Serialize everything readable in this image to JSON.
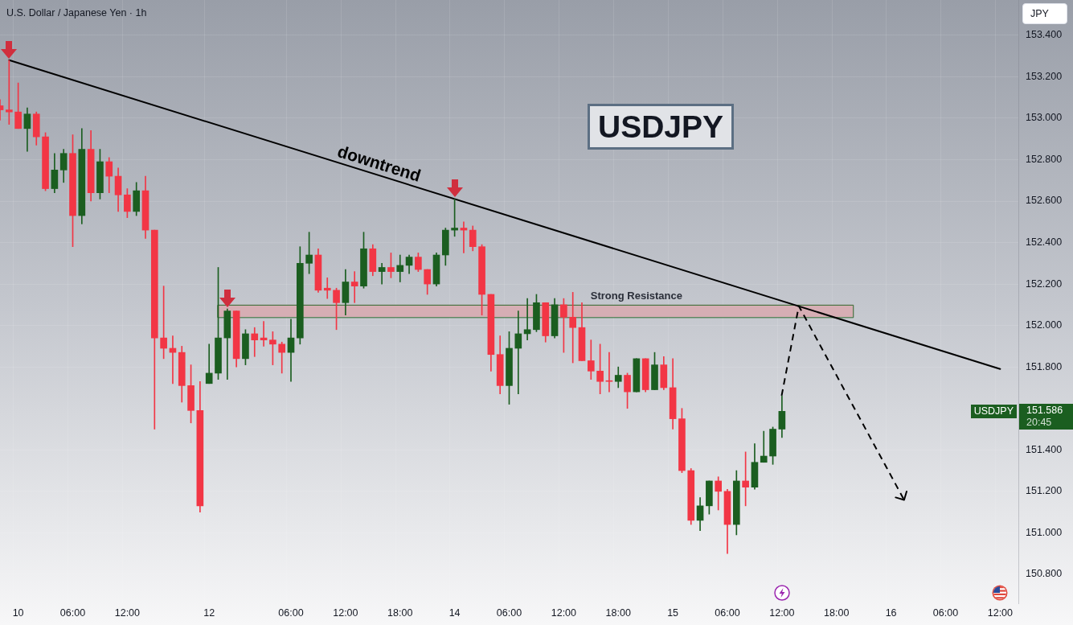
{
  "chart_data": {
    "type": "candlestick",
    "title": "U.S. Dollar / Japanese Yen · 1h",
    "ylabel": "JPY",
    "categories": [
      null,
      null,
      "10",
      null,
      null,
      null,
      null,
      null,
      "06:00",
      null,
      null,
      null,
      null,
      null,
      "12:00",
      null,
      null,
      null,
      null,
      null,
      null,
      null,
      null,
      "12",
      null,
      null,
      null,
      null,
      null,
      null,
      null,
      null,
      "06:00",
      null,
      null,
      null,
      null,
      null,
      "12:00",
      null,
      null,
      null,
      null,
      null,
      "18:00",
      null,
      null,
      null,
      null,
      null,
      "14",
      null,
      null,
      null,
      null,
      null,
      "06:00",
      null,
      null,
      null,
      null,
      null,
      "12:00",
      null,
      null,
      null,
      null,
      null,
      "18:00",
      null,
      null,
      null,
      null,
      null,
      "15",
      null,
      null,
      null,
      null,
      null,
      "06:00",
      null,
      null,
      null,
      null,
      null,
      "12:00",
      null,
      null,
      null,
      null,
      null,
      "18:00",
      null,
      null,
      null,
      null,
      null,
      "16",
      null,
      null,
      null,
      null,
      null,
      "06:00",
      null,
      null,
      null,
      null,
      null,
      "12:00",
      null,
      null
    ],
    "series": [
      {
        "name": "USDJPY",
        "ohlc": [
          [
            153.06,
            153.09,
            152.99,
            153.04
          ],
          [
            153.04,
            153.28,
            152.97,
            153.03
          ],
          [
            153.03,
            153.17,
            152.95,
            152.95
          ],
          [
            152.95,
            153.05,
            152.84,
            153.02
          ],
          [
            153.02,
            153.03,
            152.87,
            152.91
          ],
          [
            152.91,
            152.93,
            152.65,
            152.66
          ],
          [
            152.66,
            152.83,
            152.64,
            152.75
          ],
          [
            152.75,
            152.85,
            152.69,
            152.83
          ],
          [
            152.83,
            152.92,
            152.38,
            152.53
          ],
          [
            152.53,
            152.95,
            152.49,
            152.85
          ],
          [
            152.85,
            152.94,
            152.6,
            152.64
          ],
          [
            152.64,
            152.85,
            152.61,
            152.79
          ],
          [
            152.79,
            152.81,
            152.64,
            152.72
          ],
          [
            152.72,
            152.76,
            152.55,
            152.63
          ],
          [
            152.63,
            152.66,
            152.52,
            152.55
          ],
          [
            152.55,
            152.69,
            152.53,
            152.65
          ],
          [
            152.65,
            152.72,
            152.42,
            152.46
          ],
          [
            152.46,
            152.46,
            151.5,
            151.94
          ],
          [
            151.94,
            152.19,
            151.84,
            151.89
          ],
          [
            151.89,
            151.95,
            151.72,
            151.87
          ],
          [
            151.87,
            151.9,
            151.63,
            151.71
          ],
          [
            151.71,
            151.81,
            151.53,
            151.59
          ],
          [
            151.59,
            151.73,
            151.1,
            151.13
          ],
          [
            151.72,
            151.91,
            151.72,
            151.77
          ],
          [
            151.77,
            152.28,
            151.74,
            151.94
          ],
          [
            151.94,
            152.08,
            151.74,
            152.07
          ],
          [
            152.07,
            152.07,
            151.8,
            151.84
          ],
          [
            151.84,
            151.98,
            151.81,
            151.96
          ],
          [
            151.96,
            151.99,
            151.85,
            151.93
          ],
          [
            151.94,
            152.02,
            151.9,
            151.93
          ],
          [
            151.93,
            151.97,
            151.81,
            151.91
          ],
          [
            151.91,
            151.92,
            151.77,
            151.87
          ],
          [
            151.87,
            152.03,
            151.73,
            151.94
          ],
          [
            151.94,
            152.38,
            151.91,
            152.3
          ],
          [
            152.3,
            152.45,
            152.25,
            152.34
          ],
          [
            152.34,
            152.37,
            152.16,
            152.17
          ],
          [
            152.18,
            152.23,
            152.13,
            152.17
          ],
          [
            152.17,
            152.18,
            151.98,
            152.11
          ],
          [
            152.11,
            152.27,
            152.05,
            152.21
          ],
          [
            152.21,
            152.26,
            152.11,
            152.19
          ],
          [
            152.19,
            152.45,
            152.18,
            152.37
          ],
          [
            152.37,
            152.39,
            152.24,
            152.26
          ],
          [
            152.26,
            152.3,
            152.2,
            152.28
          ],
          [
            152.28,
            152.35,
            152.23,
            152.26
          ],
          [
            152.26,
            152.34,
            152.21,
            152.29
          ],
          [
            152.29,
            152.34,
            152.25,
            152.33
          ],
          [
            152.33,
            152.35,
            152.26,
            152.27
          ],
          [
            152.27,
            152.27,
            152.15,
            152.2
          ],
          [
            152.2,
            152.35,
            152.19,
            152.34
          ],
          [
            152.34,
            152.47,
            152.29,
            152.46
          ],
          [
            152.46,
            152.61,
            152.43,
            152.47
          ],
          [
            152.47,
            152.5,
            152.35,
            152.46
          ],
          [
            152.46,
            152.48,
            152.36,
            152.38
          ],
          [
            152.38,
            152.39,
            152.05,
            152.15
          ],
          [
            152.15,
            152.15,
            151.78,
            151.86
          ],
          [
            151.86,
            151.95,
            151.67,
            151.71
          ],
          [
            151.71,
            151.97,
            151.62,
            151.89
          ],
          [
            151.89,
            152.07,
            151.67,
            151.96
          ],
          [
            151.96,
            152.13,
            151.93,
            151.98
          ],
          [
            151.98,
            152.15,
            151.97,
            152.11
          ],
          [
            152.11,
            152.11,
            151.92,
            151.95
          ],
          [
            151.95,
            152.13,
            151.94,
            152.1
          ],
          [
            152.1,
            152.13,
            151.87,
            152.04
          ],
          [
            152.04,
            152.16,
            151.82,
            151.99
          ],
          [
            151.99,
            152.11,
            151.83,
            151.83
          ],
          [
            151.83,
            151.93,
            151.74,
            151.78
          ],
          [
            151.78,
            151.91,
            151.67,
            151.73
          ],
          [
            151.73,
            151.87,
            151.68,
            151.73
          ],
          [
            151.73,
            151.8,
            151.7,
            151.76
          ],
          [
            151.76,
            151.77,
            151.6,
            151.68
          ],
          [
            151.68,
            151.84,
            151.68,
            151.84
          ],
          [
            151.84,
            151.84,
            151.68,
            151.69
          ],
          [
            151.69,
            151.87,
            151.69,
            151.81
          ],
          [
            151.81,
            151.85,
            151.69,
            151.7
          ],
          [
            151.7,
            151.84,
            151.5,
            151.55
          ],
          [
            151.55,
            151.6,
            151.29,
            151.3
          ],
          [
            151.3,
            151.31,
            151.04,
            151.06
          ],
          [
            151.06,
            151.17,
            151.01,
            151.13
          ],
          [
            151.13,
            151.25,
            151.09,
            151.25
          ],
          [
            151.25,
            151.27,
            151.11,
            151.2
          ],
          [
            151.2,
            151.21,
            150.9,
            151.04
          ],
          [
            151.04,
            151.3,
            150.99,
            151.25
          ],
          [
            151.25,
            151.39,
            151.13,
            151.22
          ],
          [
            151.22,
            151.43,
            151.21,
            151.34
          ],
          [
            151.34,
            151.49,
            151.34,
            151.37
          ],
          [
            151.37,
            151.51,
            151.33,
            151.5
          ],
          [
            151.5,
            151.66,
            151.46,
            151.586
          ],
          null,
          null,
          null,
          null,
          null,
          null,
          null,
          null,
          null,
          null,
          null,
          null,
          null,
          null,
          null,
          null,
          null,
          null,
          null,
          null,
          null,
          null,
          null,
          null,
          null,
          null
        ],
        "colors": [
          "#f23645",
          "#f23645",
          "#f23645",
          "#1b5e20",
          "#f23645",
          "#f23645",
          "#1b5e20",
          "#1b5e20",
          "#f23645",
          "#1b5e20",
          "#f23645",
          "#1b5e20",
          "#f23645",
          "#f23645",
          "#f23645",
          "#1b5e20",
          "#f23645",
          "#f23645",
          "#f23645",
          "#f23645",
          "#f23645",
          "#f23645",
          "#f23645",
          "#1b5e20",
          "#1b5e20",
          "#1b5e20",
          "#f23645",
          "#1b5e20",
          "#f23645",
          "#f23645",
          "#f23645",
          "#f23645",
          "#1b5e20",
          "#1b5e20",
          "#1b5e20",
          "#f23645",
          "#f23645",
          "#f23645",
          "#1b5e20",
          "#f23645",
          "#1b5e20",
          "#f23645",
          "#1b5e20",
          "#f23645",
          "#1b5e20",
          "#1b5e20",
          "#f23645",
          "#f23645",
          "#1b5e20",
          "#1b5e20",
          "#1b5e20",
          "#f23645",
          "#f23645",
          "#f23645",
          "#f23645",
          "#f23645",
          "#1b5e20",
          "#1b5e20",
          "#1b5e20",
          "#1b5e20",
          "#f23645",
          "#1b5e20",
          "#f23645",
          "#f23645",
          "#f23645",
          "#f23645",
          "#f23645",
          "#f23645",
          "#1b5e20",
          "#f23645",
          "#1b5e20",
          "#f23645",
          "#1b5e20",
          "#f23645",
          "#f23645",
          "#f23645",
          "#f23645",
          "#1b5e20",
          "#1b5e20",
          "#f23645",
          "#f23645",
          "#1b5e20",
          "#f23645",
          "#1b5e20",
          "#1b5e20",
          "#1b5e20",
          "#1b5e20",
          null,
          null,
          null,
          null,
          null,
          null,
          null,
          null,
          null,
          null,
          null,
          null,
          null,
          null,
          null,
          null,
          null,
          null,
          null,
          null,
          null,
          null,
          null,
          null,
          null,
          null
        ]
      },
      {
        "type": "line",
        "name": "downtrend",
        "color": "#000000",
        "values": [
          null,
          153.28,
          null,
          null,
          null,
          null,
          null,
          null,
          null,
          null,
          null,
          null,
          null,
          null,
          null,
          null,
          null,
          null,
          null,
          null,
          null,
          null,
          null,
          null,
          null,
          null,
          null,
          null,
          null,
          null,
          null,
          null,
          null,
          null,
          null,
          null,
          null,
          null,
          null,
          null,
          null,
          null,
          null,
          null,
          null,
          null,
          null,
          null,
          null,
          null,
          null,
          null,
          null,
          null,
          null,
          null,
          null,
          null,
          null,
          null,
          null,
          null,
          null,
          null,
          null,
          null,
          null,
          null,
          null,
          null,
          null,
          null,
          null,
          null,
          null,
          null,
          null,
          null,
          null,
          null,
          null,
          null,
          null,
          null,
          null,
          null,
          null,
          null,
          null,
          null,
          null,
          null,
          null,
          null,
          null,
          null,
          null,
          null,
          null,
          null,
          null,
          null,
          null,
          null,
          null,
          null,
          null,
          null,
          null,
          null,
          151.79,
          null,
          null
        ]
      }
    ],
    "ylim": [
      150.66,
      153.57
    ],
    "yticks": [
      {
        "value": 150.8,
        "label": "150.800"
      },
      {
        "value": 151.0,
        "label": "151.000"
      },
      {
        "value": 151.2,
        "label": "151.200"
      },
      {
        "value": 151.4,
        "label": "151.400"
      },
      {
        "value": 151.8,
        "label": "151.800"
      },
      {
        "value": 152.0,
        "label": "152.000"
      },
      {
        "value": 152.2,
        "label": "152.200"
      },
      {
        "value": 152.4,
        "label": "152.400"
      },
      {
        "value": 152.6,
        "label": "152.600"
      },
      {
        "value": 152.8,
        "label": "152.800"
      },
      {
        "value": 153.0,
        "label": "153.000"
      },
      {
        "value": 153.2,
        "label": "153.200"
      },
      {
        "value": 153.4,
        "label": "153.400"
      }
    ],
    "grid": true,
    "bands": [
      {
        "axis": "y",
        "from": 152.04,
        "to": 152.1,
        "label": "Strong Resistance",
        "color": "#d6aeb4"
      }
    ],
    "annotations": [
      "USDJPY",
      "151.586",
      "20:45"
    ]
  }
}
